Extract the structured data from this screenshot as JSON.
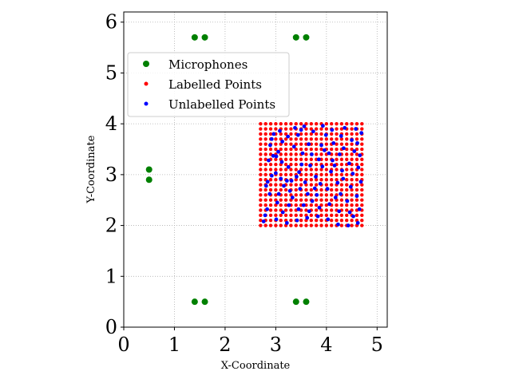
{
  "chart_data": {
    "type": "scatter",
    "xlabel": "X-Coordinate",
    "ylabel": "Y-Coordinate",
    "xlim": [
      0,
      5.2
    ],
    "ylim": [
      0,
      6.2
    ],
    "xticks": [
      "0",
      "1",
      "2",
      "3",
      "4",
      "5"
    ],
    "yticks": [
      "0",
      "1",
      "2",
      "3",
      "4",
      "5",
      "6"
    ],
    "grid": true,
    "legend_position": "upper-left",
    "series": [
      {
        "name": "Microphones",
        "color": "#008000",
        "points": [
          [
            0.5,
            2.9
          ],
          [
            0.5,
            3.1
          ],
          [
            1.4,
            0.5
          ],
          [
            1.6,
            0.5
          ],
          [
            3.4,
            0.5
          ],
          [
            3.6,
            0.5
          ],
          [
            1.4,
            5.7
          ],
          [
            1.6,
            5.7
          ],
          [
            3.4,
            5.7
          ],
          [
            3.6,
            5.7
          ]
        ]
      },
      {
        "name": "Labelled Points",
        "color": "#ff0000",
        "grid_points": {
          "x_start": 2.7,
          "x_end": 4.7,
          "x_step": 0.1,
          "y_start": 2.0,
          "y_end": 4.0,
          "y_step": 0.1
        }
      },
      {
        "name": "Unlabelled Points",
        "color": "#0000ff",
        "points": [
          [
            2.76,
            2.08
          ],
          [
            2.79,
            2.2
          ],
          [
            2.83,
            2.32
          ],
          [
            2.88,
            2.62
          ],
          [
            2.81,
            2.78
          ],
          [
            2.84,
            2.86
          ],
          [
            2.92,
            2.98
          ],
          [
            2.86,
            3.28
          ],
          [
            2.95,
            3.37
          ],
          [
            2.89,
            3.58
          ],
          [
            2.96,
            3.8
          ],
          [
            2.92,
            3.7
          ],
          [
            3.01,
            2.12
          ],
          [
            3.03,
            2.45
          ],
          [
            3.06,
            2.62
          ],
          [
            3.1,
            2.92
          ],
          [
            3.0,
            3.03
          ],
          [
            3.12,
            3.25
          ],
          [
            3.05,
            3.45
          ],
          [
            3.13,
            3.65
          ],
          [
            3.08,
            3.86
          ],
          [
            3.01,
            3.36
          ],
          [
            3.16,
            2.78
          ],
          [
            3.14,
            2.26
          ],
          [
            3.22,
            2.05
          ],
          [
            3.26,
            2.4
          ],
          [
            3.28,
            2.68
          ],
          [
            3.22,
            2.88
          ],
          [
            3.31,
            2.88
          ],
          [
            3.25,
            3.15
          ],
          [
            3.36,
            3.55
          ],
          [
            3.24,
            3.75
          ],
          [
            3.38,
            3.92
          ],
          [
            3.33,
            2.55
          ],
          [
            3.42,
            2.1
          ],
          [
            3.45,
            2.32
          ],
          [
            3.48,
            2.72
          ],
          [
            3.41,
            2.96
          ],
          [
            3.46,
            3.05
          ],
          [
            3.51,
            3.2
          ],
          [
            3.44,
            3.78
          ],
          [
            3.5,
            3.88
          ],
          [
            3.55,
            2.4
          ],
          [
            3.58,
            2.85
          ],
          [
            3.53,
            3.42
          ],
          [
            3.56,
            3.95
          ],
          [
            3.62,
            2.15
          ],
          [
            3.66,
            2.28
          ],
          [
            3.63,
            2.62
          ],
          [
            3.68,
            3.18
          ],
          [
            3.71,
            3.4
          ],
          [
            3.65,
            3.6
          ],
          [
            3.74,
            3.85
          ],
          [
            3.77,
            2.73
          ],
          [
            3.79,
            2.96
          ],
          [
            3.72,
            2.48
          ],
          [
            3.83,
            2.18
          ],
          [
            3.86,
            2.35
          ],
          [
            3.81,
            2.6
          ],
          [
            3.88,
            2.82
          ],
          [
            3.92,
            3.16
          ],
          [
            3.85,
            3.3
          ],
          [
            3.96,
            3.48
          ],
          [
            3.9,
            3.58
          ],
          [
            3.99,
            3.78
          ],
          [
            3.93,
            3.96
          ],
          [
            4.03,
            2.12
          ],
          [
            4.06,
            2.42
          ],
          [
            4.02,
            2.72
          ],
          [
            4.09,
            3.06
          ],
          [
            4.12,
            3.28
          ],
          [
            4.05,
            3.42
          ],
          [
            4.14,
            3.62
          ],
          [
            4.11,
            3.88
          ],
          [
            4.18,
            2.55
          ],
          [
            4.16,
            3.18
          ],
          [
            4.23,
            2.02
          ],
          [
            4.25,
            2.28
          ],
          [
            4.28,
            2.62
          ],
          [
            4.22,
            2.84
          ],
          [
            4.31,
            3.08
          ],
          [
            4.26,
            3.4
          ],
          [
            4.34,
            3.52
          ],
          [
            4.29,
            3.76
          ],
          [
            4.36,
            3.92
          ],
          [
            4.33,
            2.92
          ],
          [
            4.43,
            2.0
          ],
          [
            4.46,
            2.26
          ],
          [
            4.41,
            2.48
          ],
          [
            4.48,
            2.76
          ],
          [
            4.52,
            3.02
          ],
          [
            4.45,
            3.22
          ],
          [
            4.55,
            3.46
          ],
          [
            4.5,
            3.68
          ],
          [
            4.58,
            3.9
          ],
          [
            4.53,
            2.18
          ],
          [
            4.62,
            2.05
          ],
          [
            4.65,
            2.32
          ],
          [
            4.6,
            2.58
          ],
          [
            4.68,
            2.86
          ],
          [
            4.63,
            3.14
          ],
          [
            4.66,
            3.38
          ],
          [
            4.61,
            3.62
          ],
          [
            4.69,
            3.82
          ]
        ]
      }
    ]
  }
}
